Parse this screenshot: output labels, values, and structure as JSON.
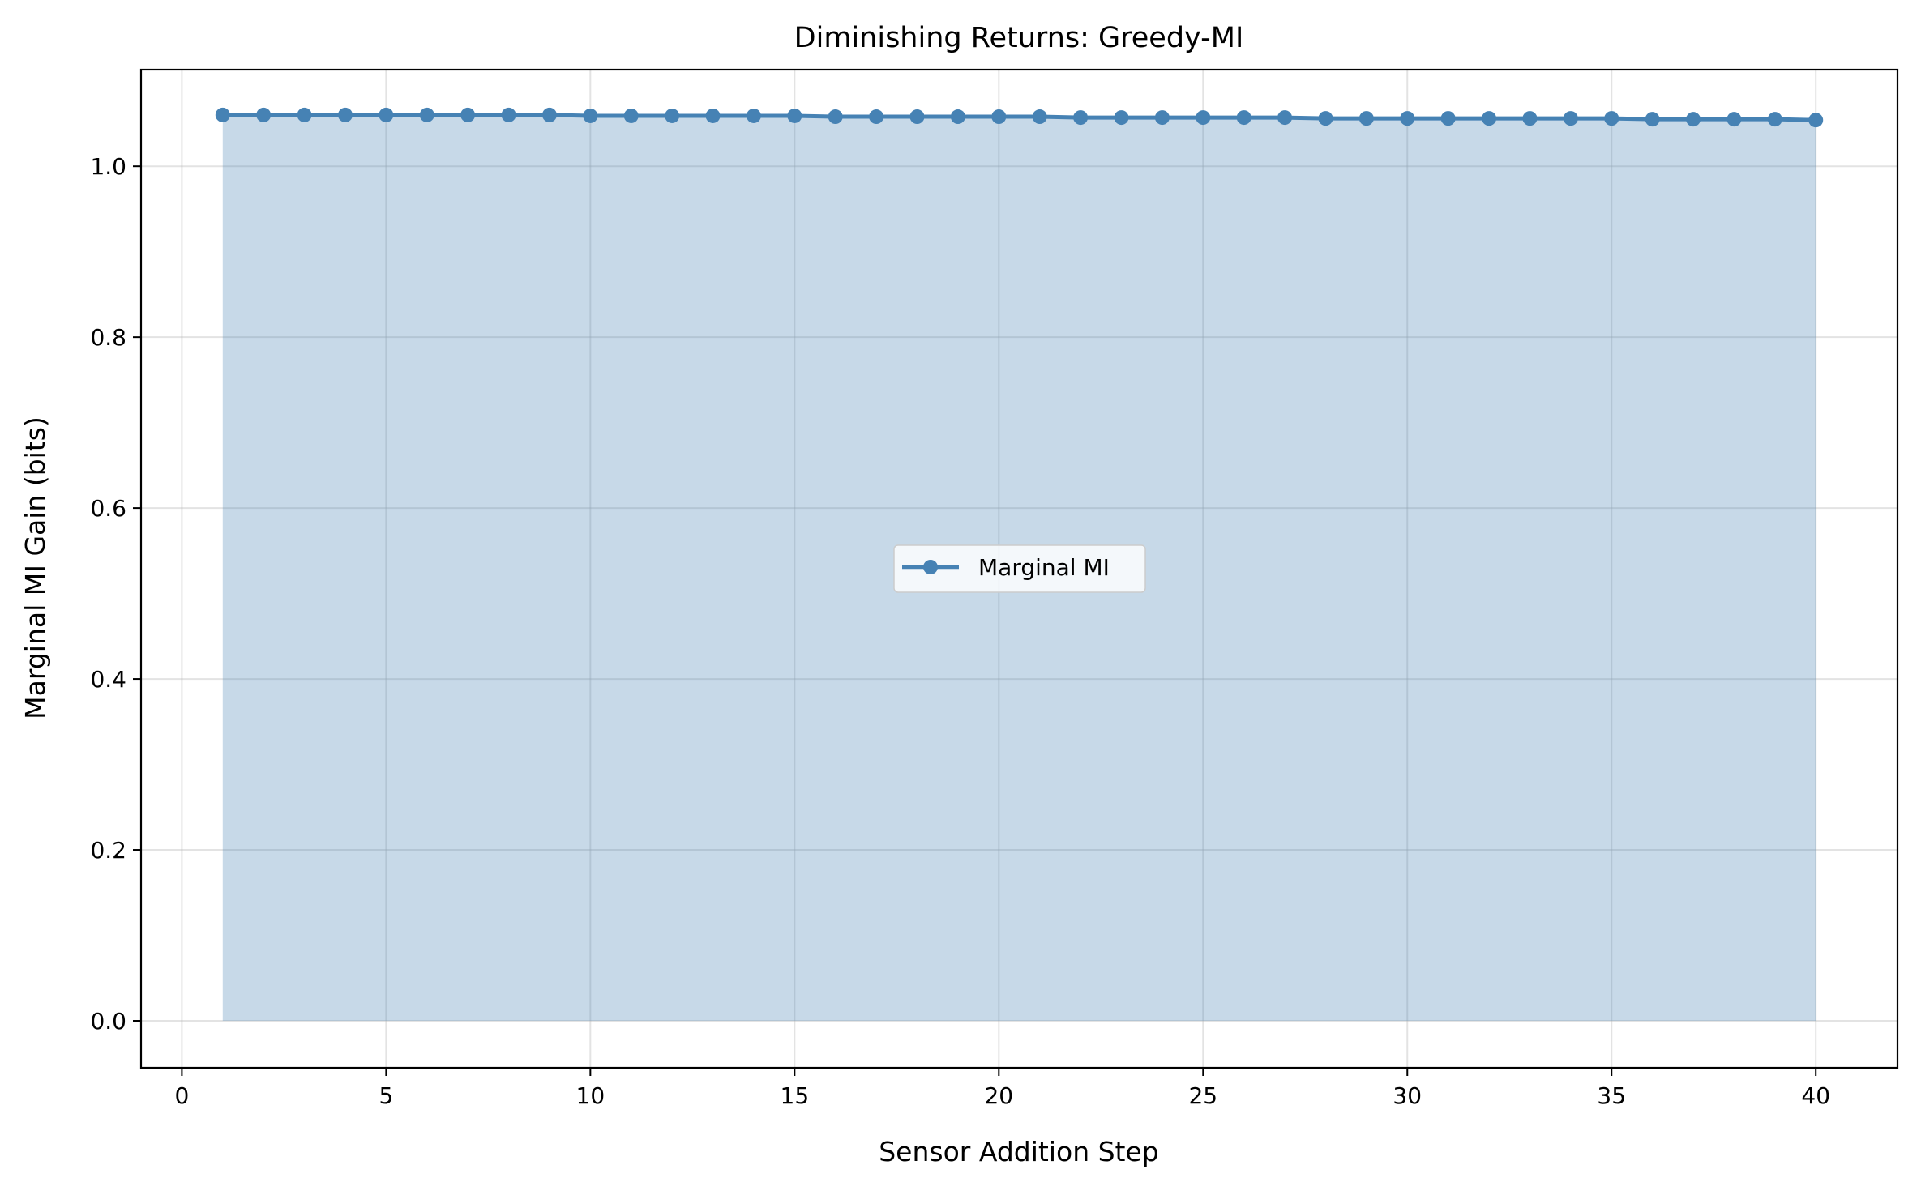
{
  "chart_data": {
    "type": "line",
    "title": "Diminishing Returns: Greedy-MI",
    "xlabel": "Sensor Addition Step",
    "ylabel": "Marginal MI Gain (bits)",
    "xlim": [
      -1,
      42
    ],
    "ylim": [
      -0.055,
      1.113
    ],
    "xticks": [
      0,
      5,
      10,
      15,
      20,
      25,
      30,
      35,
      40
    ],
    "xtick_labels": [
      "0",
      "5",
      "10",
      "15",
      "20",
      "25",
      "30",
      "35",
      "40"
    ],
    "yticks": [
      0.0,
      0.2,
      0.4,
      0.6,
      0.8,
      1.0
    ],
    "ytick_labels": [
      "0.0",
      "0.2",
      "0.4",
      "0.6",
      "0.8",
      "1.0"
    ],
    "grid": true,
    "legend_position": "center",
    "series": [
      {
        "name": "Marginal MI",
        "color": "#4682b4",
        "fill_color": "#4682b4",
        "filled_area": true,
        "marker": "circle",
        "x": [
          1,
          2,
          3,
          4,
          5,
          6,
          7,
          8,
          9,
          10,
          11,
          12,
          13,
          14,
          15,
          16,
          17,
          18,
          19,
          20,
          21,
          22,
          23,
          24,
          25,
          26,
          27,
          28,
          29,
          30,
          31,
          32,
          33,
          34,
          35,
          36,
          37,
          38,
          39,
          40
        ],
        "y": [
          1.06,
          1.06,
          1.06,
          1.06,
          1.06,
          1.06,
          1.06,
          1.06,
          1.06,
          1.059,
          1.059,
          1.059,
          1.059,
          1.059,
          1.059,
          1.058,
          1.058,
          1.058,
          1.058,
          1.058,
          1.058,
          1.057,
          1.057,
          1.057,
          1.057,
          1.057,
          1.057,
          1.056,
          1.056,
          1.056,
          1.056,
          1.056,
          1.056,
          1.056,
          1.056,
          1.055,
          1.055,
          1.055,
          1.055,
          1.054
        ]
      }
    ]
  }
}
